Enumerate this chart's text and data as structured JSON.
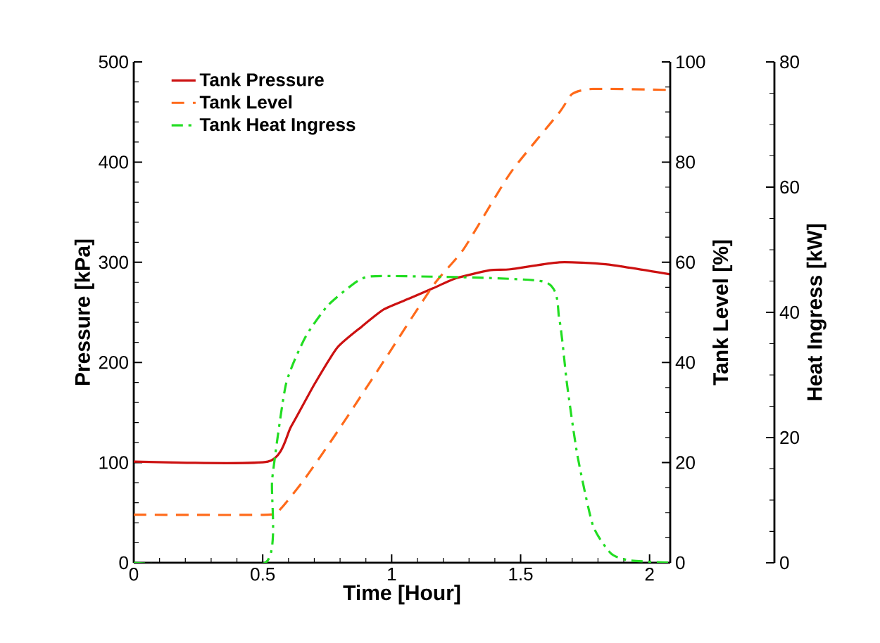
{
  "chart_data": {
    "type": "line",
    "xlabel": "Time [Hour]",
    "ylabel": "Pressure [kPa]",
    "y2label": "Tank Level [%]",
    "y3label": "Heat Ingress [kW]",
    "xlim": [
      0,
      2.08
    ],
    "xticks": [
      0,
      0.5,
      1,
      1.5,
      2
    ],
    "ylim": [
      0,
      500
    ],
    "yticks": [
      0,
      100,
      200,
      300,
      400,
      500
    ],
    "y2lim": [
      0,
      100
    ],
    "y2ticks": [
      0,
      20,
      40,
      60,
      80,
      100
    ],
    "y3lim": [
      0,
      80
    ],
    "y3ticks": [
      0,
      20,
      40,
      60,
      80
    ],
    "legend": "top left",
    "grid": false,
    "marker": "none",
    "series": [
      {
        "name": "Tank Pressure",
        "color": "#cc1111",
        "line_style": "solid",
        "axis": "y",
        "x": [
          0,
          0.52,
          0.61,
          0.7,
          0.79,
          0.885,
          0.97,
          1.07,
          1.16,
          1.25,
          1.38,
          1.46,
          1.65,
          1.83,
          2.08
        ],
        "values": [
          101,
          101,
          136,
          178,
          215,
          236,
          253,
          264,
          274,
          284,
          292,
          293,
          300,
          298,
          288
        ]
      },
      {
        "name": "Tank Level",
        "color": "#ff6a1a",
        "line_style": "dashed",
        "axis": "y2",
        "x": [
          0,
          0.52,
          0.57,
          0.665,
          0.79,
          0.97,
          1.16,
          1.28,
          1.46,
          1.65,
          1.7,
          1.78,
          2.08
        ],
        "values": [
          9.6,
          9.6,
          10.8,
          16.9,
          26.2,
          40.3,
          55.3,
          62.7,
          77.8,
          89.9,
          93.6,
          94.6,
          94.4
        ]
      },
      {
        "name": "Tank Heat Ingress",
        "color": "#22dd22",
        "line_style": "dashdot",
        "axis": "y3",
        "x": [
          0,
          0.51,
          0.537,
          0.59,
          0.665,
          0.755,
          0.88,
          0.99,
          1.59,
          1.65,
          1.68,
          1.72,
          1.78,
          1.85,
          1.92,
          2.08
        ],
        "values": [
          0,
          0,
          13.5,
          28.5,
          36,
          41.2,
          45.3,
          45.8,
          44.9,
          38.9,
          28.5,
          17.2,
          6,
          1.5,
          0.4,
          0
        ]
      }
    ]
  }
}
